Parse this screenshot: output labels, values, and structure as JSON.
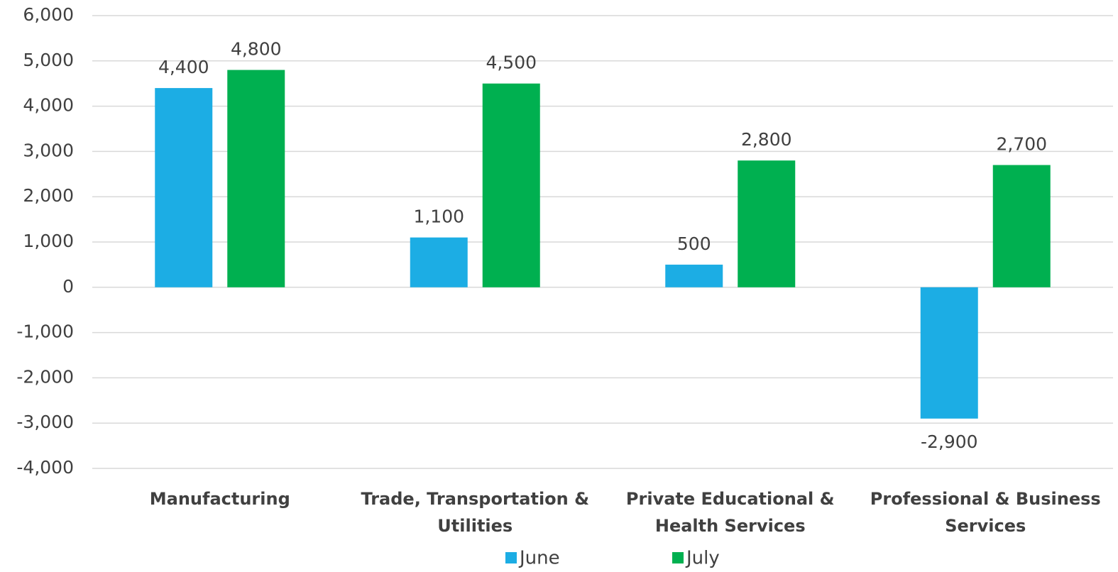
{
  "chart_data": {
    "type": "bar",
    "categories": [
      "Manufacturing",
      "Trade, Transportation & Utilities",
      "Private Educational & Health Services",
      "Professional & Business Services"
    ],
    "series": [
      {
        "name": "June",
        "color": "#1cade4",
        "values": [
          4400,
          1100,
          500,
          -2900
        ],
        "value_labels": [
          "4,400",
          "1,100",
          "500",
          "-2,900"
        ]
      },
      {
        "name": "July",
        "color": "#00b050",
        "values": [
          4800,
          4500,
          2800,
          2700
        ],
        "value_labels": [
          "4,800",
          "4,500",
          "2,800",
          "2,700"
        ]
      }
    ],
    "ylim": [
      -4000,
      6000
    ],
    "yticks": [
      {
        "value": -4000,
        "label": "-4,000"
      },
      {
        "value": -3000,
        "label": "-3,000"
      },
      {
        "value": -2000,
        "label": "-2,000"
      },
      {
        "value": -1000,
        "label": "-1,000"
      },
      0,
      {
        "value": 1000,
        "label": "1,000"
      },
      {
        "value": 2000,
        "label": "2,000"
      },
      {
        "value": 3000,
        "label": "3,000"
      },
      {
        "value": 4000,
        "label": "4,000"
      },
      {
        "value": 5000,
        "label": "5,000"
      },
      {
        "value": 6000,
        "label": "6,000"
      }
    ],
    "grid": true,
    "legend": "bottom"
  }
}
